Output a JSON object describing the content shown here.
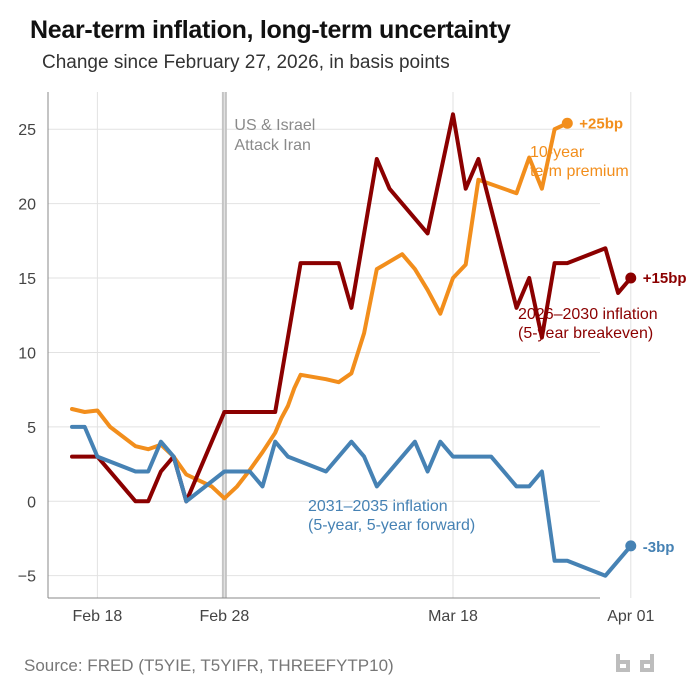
{
  "chart_data": {
    "type": "line",
    "title": "Near-term inflation, long-term uncertainty",
    "subtitle": "Change since February 27, 2026, in basis points",
    "source": "Source: FRED (T5YIE, T5YIFR, THREEFYTP10)",
    "xlabel": "",
    "ylabel": "",
    "ylim": [
      -6.5,
      27.5
    ],
    "yticks": [
      -5,
      0,
      5,
      10,
      15,
      20,
      25
    ],
    "ytick_labels": [
      "−5",
      "0",
      "5",
      "10",
      "15",
      "20",
      "25"
    ],
    "xlim": [
      0,
      42
    ],
    "xticks": [
      {
        "pos": 2,
        "label": "Feb 18"
      },
      {
        "pos": 12,
        "label": "Feb 28"
      },
      {
        "pos": 30,
        "label": "Mar 18"
      },
      {
        "pos": 44,
        "label": "Apr 01"
      }
    ],
    "event": {
      "pos": 12,
      "label_lines": [
        "US & Israel",
        "Attack Iran"
      ]
    },
    "series": [
      {
        "name": "10-year term premium",
        "color": "#f28e1c",
        "annotation": [
          "10-year",
          "term premium"
        ],
        "end_label": "+25bp",
        "x": [
          0,
          1,
          2,
          3,
          5,
          6,
          7,
          8,
          9,
          11,
          12,
          13,
          14,
          15,
          16,
          16.5,
          17,
          17.5,
          18,
          20,
          21,
          22,
          23,
          24,
          26,
          27,
          28,
          29,
          30,
          31,
          32,
          35,
          36,
          37,
          38,
          39
        ],
        "values": [
          6.2,
          6.0,
          6.1,
          5.0,
          3.7,
          3.5,
          3.8,
          3.0,
          1.8,
          1.0,
          0.2,
          1.0,
          2.1,
          3.3,
          4.6,
          5.6,
          6.4,
          7.6,
          8.5,
          8.2,
          8.0,
          8.6,
          11.3,
          15.6,
          16.6,
          15.6,
          14.2,
          12.6,
          15.0,
          15.9,
          21.6,
          20.7,
          23.1,
          21.0,
          25.0,
          25.4
        ]
      },
      {
        "name": "2026–2030 inflation (5-year breakeven)",
        "color": "#8b0000",
        "annotation": [
          "2026–2030 inflation",
          "(5-year breakeven)"
        ],
        "end_label": "+15bp",
        "x": [
          0,
          2,
          5,
          6,
          7,
          8,
          9,
          12,
          14,
          16,
          18,
          21,
          22,
          24,
          25,
          28,
          30,
          31,
          32,
          35,
          36,
          37,
          38,
          39,
          42,
          43,
          44
        ],
        "values": [
          3.0,
          3.0,
          0.0,
          0.0,
          2.0,
          3.0,
          0.0,
          6.0,
          6.0,
          6.0,
          16.0,
          16.0,
          13.0,
          23.0,
          21.0,
          18.0,
          26.0,
          21.0,
          23.0,
          13.0,
          15.0,
          11.0,
          16.0,
          16.0,
          17.0,
          14.0,
          15.0
        ]
      },
      {
        "name": "2031–2035 inflation (5-year, 5-year forward)",
        "color": "#4682b4",
        "annotation": [
          "2031–2035 inflation",
          "(5-year, 5-year forward)"
        ],
        "end_label": "-3bp",
        "x": [
          0,
          1,
          2,
          5,
          6,
          7,
          8,
          9,
          12,
          14,
          15,
          16,
          17,
          20,
          22,
          23,
          24,
          27,
          28,
          29,
          30,
          31,
          33,
          35,
          36,
          37,
          38,
          39,
          42,
          44
        ],
        "values": [
          5.0,
          5.0,
          3.0,
          2.0,
          2.0,
          4.0,
          3.0,
          0.0,
          2.0,
          2.0,
          1.0,
          4.0,
          3.0,
          2.0,
          4.0,
          3.0,
          1.0,
          4.0,
          2.0,
          4.0,
          3.0,
          3.0,
          3.0,
          1.0,
          1.0,
          2.0,
          -4.0,
          -4.0,
          -5.0,
          -3.0
        ]
      }
    ]
  }
}
